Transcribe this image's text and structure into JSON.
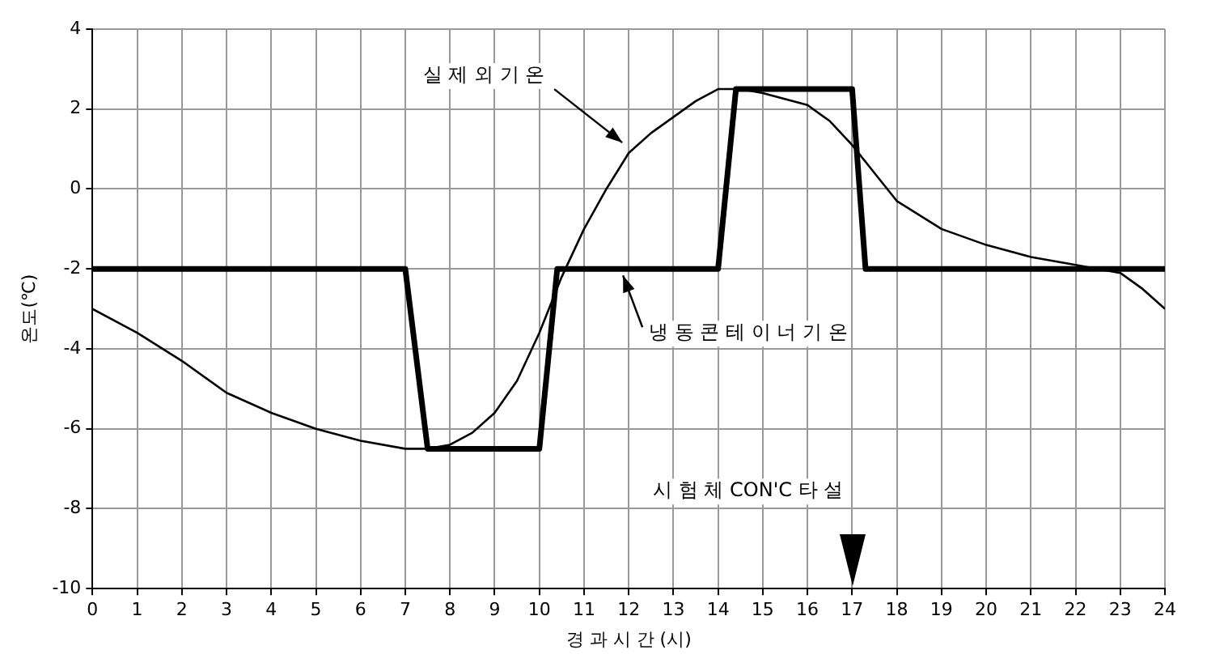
{
  "chart_data": {
    "type": "line",
    "xlabel": "경 과 시 간 (시)",
    "ylabel": "온도(℃)",
    "xlim": [
      0,
      24
    ],
    "xticks": [
      0,
      1,
      2,
      3,
      4,
      5,
      6,
      7,
      8,
      9,
      10,
      11,
      12,
      13,
      14,
      15,
      16,
      17,
      18,
      19,
      20,
      21,
      22,
      23,
      24
    ],
    "ylim": [
      -10,
      4
    ],
    "yticks": [
      -10,
      -8,
      -6,
      -4,
      -2,
      0,
      2,
      4
    ],
    "grid": true,
    "legend": false,
    "marker": "none",
    "line_style": "solid",
    "series": [
      {
        "color": "#000000",
        "x": [
          0,
          1,
          2,
          3,
          4,
          5,
          6,
          7,
          7.5,
          8,
          8.5,
          9,
          9.5,
          10,
          10.5,
          11,
          11.5,
          12,
          12.5,
          13,
          13.5,
          14,
          14.5,
          15,
          16,
          16.5,
          17,
          17.5,
          18,
          19,
          20,
          21,
          22,
          23,
          23.5,
          24
        ],
        "values": [
          -3,
          -3.6,
          -4.3,
          -5.1,
          -5.6,
          -6.0,
          -6.3,
          -6.5,
          -6.5,
          -6.4,
          -6.1,
          -5.6,
          -4.8,
          -3.6,
          -2.2,
          -1,
          0,
          0.9,
          1.4,
          1.8,
          2.2,
          2.5,
          2.5,
          2.4,
          2.1,
          1.7,
          1.1,
          0.4,
          -0.3,
          -1,
          -1.4,
          -1.7,
          -1.9,
          -2.1,
          -2.5,
          -3
        ]
      },
      {
        "color": "#000000",
        "x": [
          0,
          7,
          7.5,
          10,
          10.4,
          14,
          14.4,
          17,
          17.3,
          24
        ],
        "values": [
          -2,
          -2,
          -6.5,
          -6.5,
          -2,
          -2,
          2.5,
          2.5,
          -2,
          -2
        ]
      }
    ],
    "annotations": [
      {
        "text": "실 제 외 기 온",
        "x": 12,
        "y": 1
      },
      {
        "text": "냉 동 콘 테 이 너 기 온",
        "x": 11.8,
        "y": -2
      },
      "시 험 체 CON'C 타 설"
    ]
  }
}
